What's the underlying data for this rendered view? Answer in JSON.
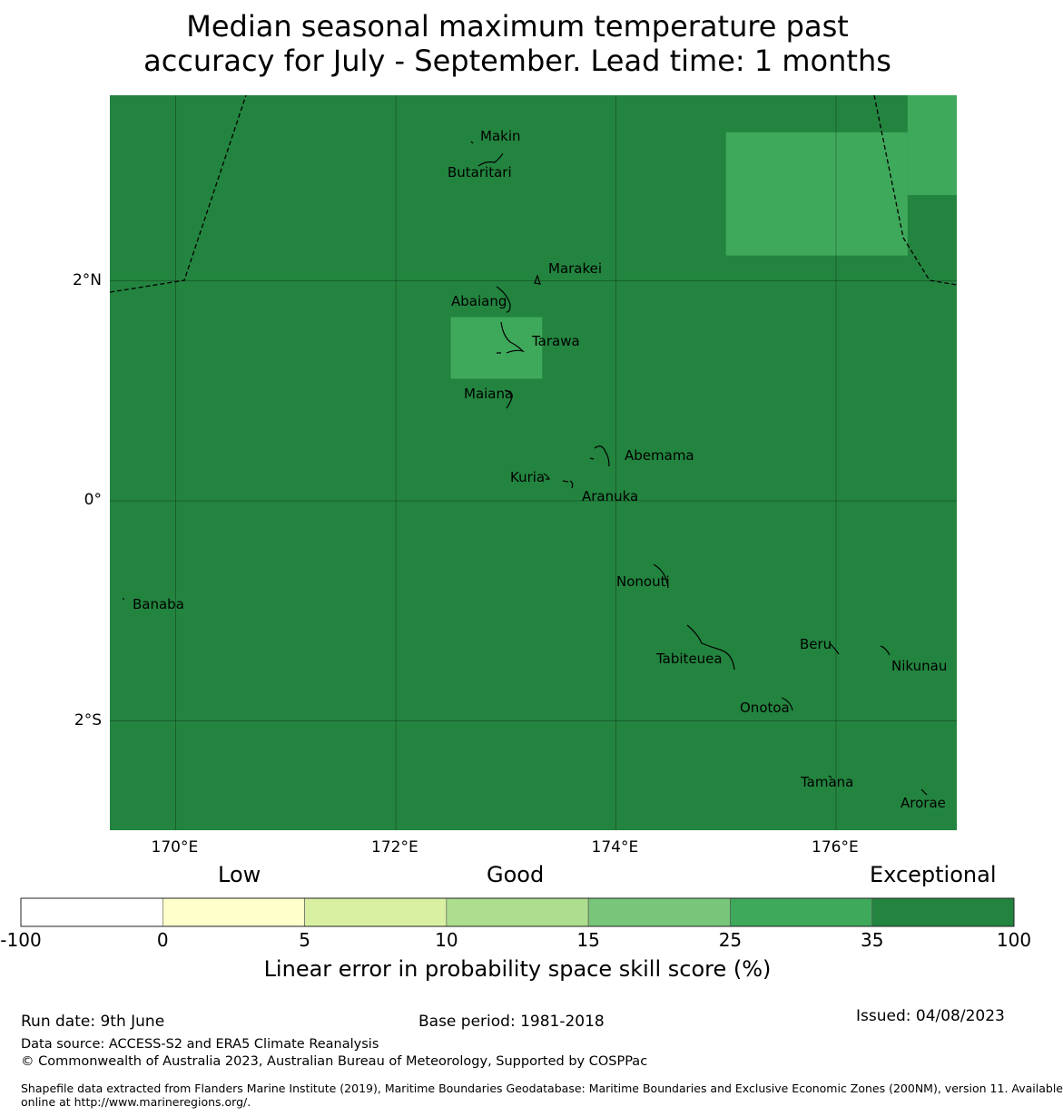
{
  "title": {
    "line1": "Median seasonal maximum temperature past",
    "line2": "accuracy for July - September. Lead time: 1 months"
  },
  "map": {
    "lon_range": [
      169.4,
      177.1
    ],
    "lat_range": [
      -3.0,
      3.7
    ],
    "background_color": "#23843f",
    "gridlines": true,
    "lon_ticks": [
      {
        "value": 170,
        "label": "170°E"
      },
      {
        "value": 172,
        "label": "172°E"
      },
      {
        "value": 174,
        "label": "174°E"
      },
      {
        "value": 176,
        "label": "176°E"
      }
    ],
    "lat_ticks": [
      {
        "value": 2,
        "label": "2°N"
      },
      {
        "value": 0,
        "label": "0°"
      },
      {
        "value": -2,
        "label": "2°S"
      }
    ],
    "skill_cells": [
      {
        "lon": [
          175.0,
          176.65
        ],
        "lat": [
          2.23,
          3.35
        ],
        "category": "25-35",
        "color": "#3fa95b"
      },
      {
        "lon": [
          176.65,
          177.1
        ],
        "lat": [
          2.78,
          3.7
        ],
        "category": "25-35",
        "color": "#3fa95b"
      },
      {
        "lon": [
          172.5,
          173.33
        ],
        "lat": [
          1.11,
          1.67
        ],
        "category": "25-35",
        "color": "#3fa95b"
      }
    ],
    "islands": [
      {
        "name": "Makin",
        "lon": 172.82,
        "lat": 3.32
      },
      {
        "name": "Butaritari",
        "lon": 172.78,
        "lat": 3.0
      },
      {
        "name": "Marakei",
        "lon": 173.3,
        "lat": 2.02
      },
      {
        "name": "Abaiang",
        "lon": 173.0,
        "lat": 1.85
      },
      {
        "name": "Tarawa",
        "lon": 173.0,
        "lat": 1.45
      },
      {
        "name": "Maiana",
        "lon": 173.0,
        "lat": 0.93
      },
      {
        "name": "Abemama",
        "lon": 173.85,
        "lat": 0.4
      },
      {
        "name": "Kuria",
        "lon": 173.4,
        "lat": 0.22
      },
      {
        "name": "Aranuka",
        "lon": 173.6,
        "lat": 0.16
      },
      {
        "name": "Nonouti",
        "lon": 174.4,
        "lat": -0.65
      },
      {
        "name": "Banaba",
        "lon": 169.53,
        "lat": -0.87
      },
      {
        "name": "Tabiteuea",
        "lon": 174.8,
        "lat": -1.3
      },
      {
        "name": "Beru",
        "lon": 175.98,
        "lat": -1.33
      },
      {
        "name": "Nikunau",
        "lon": 176.45,
        "lat": -1.36
      },
      {
        "name": "Onotoa",
        "lon": 175.55,
        "lat": -1.82
      },
      {
        "name": "Tamana",
        "lon": 175.98,
        "lat": -2.5
      },
      {
        "name": "Arorae",
        "lon": 176.82,
        "lat": -2.64
      }
    ]
  },
  "colorbar": {
    "category_labels": {
      "low": "Low",
      "good": "Good",
      "exceptional": "Exceptional"
    },
    "boundaries": [
      "-100",
      "0",
      "5",
      "10",
      "15",
      "25",
      "35",
      "100"
    ],
    "colors": [
      "#ffffff",
      "#ffffcc",
      "#d9f0a3",
      "#addd8e",
      "#78c679",
      "#3fa95b",
      "#23843f"
    ],
    "title": "Linear error in probability space skill score (%)"
  },
  "footer": {
    "run_date": "Run date: 9th June",
    "base_period": "Base period: 1981-2018",
    "issued": "Issued: 04/08/2023",
    "data_source": "Data source: ACCESS-S2 and ERA5 Climate Reanalysis",
    "copyright": "© Commonwealth of Australia 2023, Australian Bureau of Meteorology, Supported by COSPPac",
    "shapefile_line1": "Shapefile data extracted from Flanders Marine Institute (2019), Maritime Boundaries Geodatabase: Maritime Boundaries and Exclusive Economic Zones (200NM), version 11. Available",
    "shapefile_line2": "online at http://www.marineregions.org/."
  }
}
